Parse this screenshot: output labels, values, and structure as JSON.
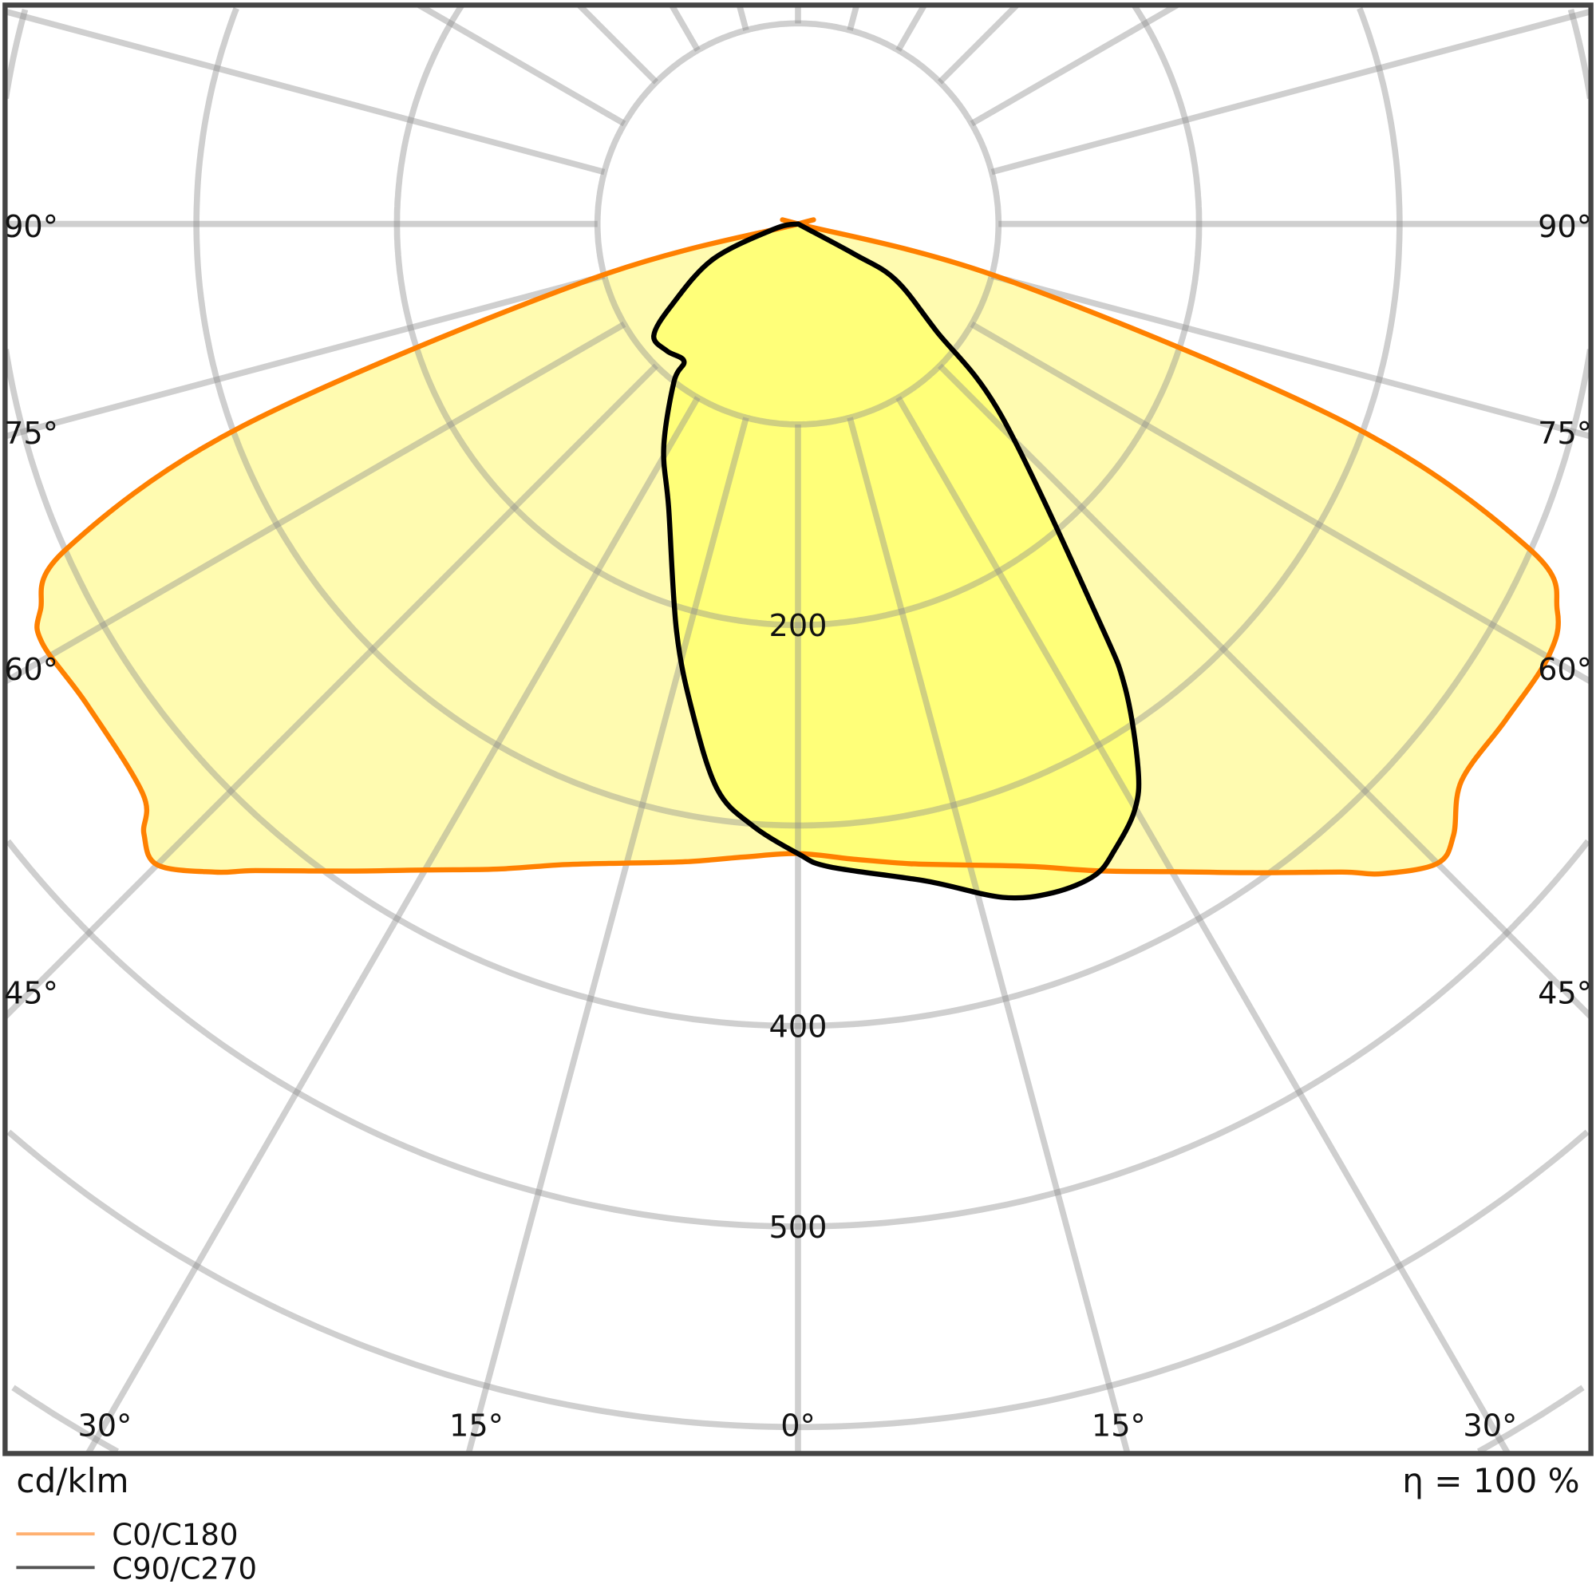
{
  "chart_data": {
    "type": "polar",
    "unit_label": "cd/klm",
    "efficiency_label": "η = 100 %",
    "angle_zero": "down",
    "radial_ticks": [
      100,
      200,
      300,
      400,
      500,
      600,
      700,
      800
    ],
    "radial_tick_labels": [
      {
        "value": 200,
        "text": "200"
      },
      {
        "value": 400,
        "text": "400"
      },
      {
        "value": 500,
        "text": "500"
      }
    ],
    "angle_grid_step_deg": 15,
    "side_angle_labels": [
      "90°",
      "75°",
      "60°",
      "45°"
    ],
    "bottom_angle_labels": [
      "30°",
      "15°",
      "0°",
      "15°",
      "30°"
    ],
    "grid": true,
    "legend_placement": "bottom-left",
    "series": [
      {
        "name": "C0/C180",
        "color": "#ff8000",
        "fill": "#fffbb0",
        "points": [
          [
            -90,
            0
          ],
          [
            -85,
            0
          ],
          [
            -80,
            0
          ],
          [
            -75,
            108
          ],
          [
            -70,
            295
          ],
          [
            -66,
            400
          ],
          [
            -63,
            424
          ],
          [
            -61,
            431
          ],
          [
            -56,
            428
          ],
          [
            -49,
            433
          ],
          [
            -47,
            446
          ],
          [
            -45,
            452
          ],
          [
            -42,
            435
          ],
          [
            -40,
            421
          ],
          [
            -35,
            394
          ],
          [
            -30,
            372
          ],
          [
            -25,
            355
          ],
          [
            -20,
            340
          ],
          [
            -15,
            330
          ],
          [
            -10,
            323
          ],
          [
            -5,
            317
          ],
          [
            0,
            314
          ],
          [
            5,
            318
          ],
          [
            10,
            324
          ],
          [
            15,
            331
          ],
          [
            20,
            341
          ],
          [
            25,
            356
          ],
          [
            30,
            373
          ],
          [
            35,
            395
          ],
          [
            40,
            422
          ],
          [
            42,
            436
          ],
          [
            45,
            451
          ],
          [
            47,
            447
          ],
          [
            50,
            432
          ],
          [
            55,
            431
          ],
          [
            60,
            432
          ],
          [
            63,
            425
          ],
          [
            66,
            400
          ],
          [
            70,
            293
          ],
          [
            75,
            108
          ],
          [
            80,
            0
          ],
          [
            85,
            0
          ],
          [
            90,
            0
          ]
        ]
      },
      {
        "name": "C90/C270",
        "color": "#000000",
        "fill": "#ffff70",
        "points": [
          [
            -90,
            0
          ],
          [
            -78,
            12
          ],
          [
            -67.4,
            46
          ],
          [
            -57.2,
            75
          ],
          [
            -52.2,
            91
          ],
          [
            -45.9,
            91
          ],
          [
            -39.7,
            89
          ],
          [
            -38.2,
            100
          ],
          [
            -31,
            130
          ],
          [
            -24.4,
            156
          ],
          [
            -16.6,
            212
          ],
          [
            -12.2,
            249
          ],
          [
            -8.1,
            285
          ],
          [
            -4.3,
            301
          ],
          [
            0,
            314
          ],
          [
            2.8,
            321
          ],
          [
            11.1,
            334
          ],
          [
            16.9,
            351
          ],
          [
            20.9,
            357
          ],
          [
            24.5,
            357
          ],
          [
            26.8,
            350
          ],
          [
            29.9,
            337
          ],
          [
            32,
            320
          ],
          [
            35.2,
            283
          ],
          [
            37.2,
            248
          ],
          [
            46.6,
            140
          ],
          [
            52.3,
            87
          ],
          [
            60.2,
            56
          ],
          [
            61.8,
            32
          ],
          [
            90,
            0
          ]
        ]
      }
    ]
  }
}
